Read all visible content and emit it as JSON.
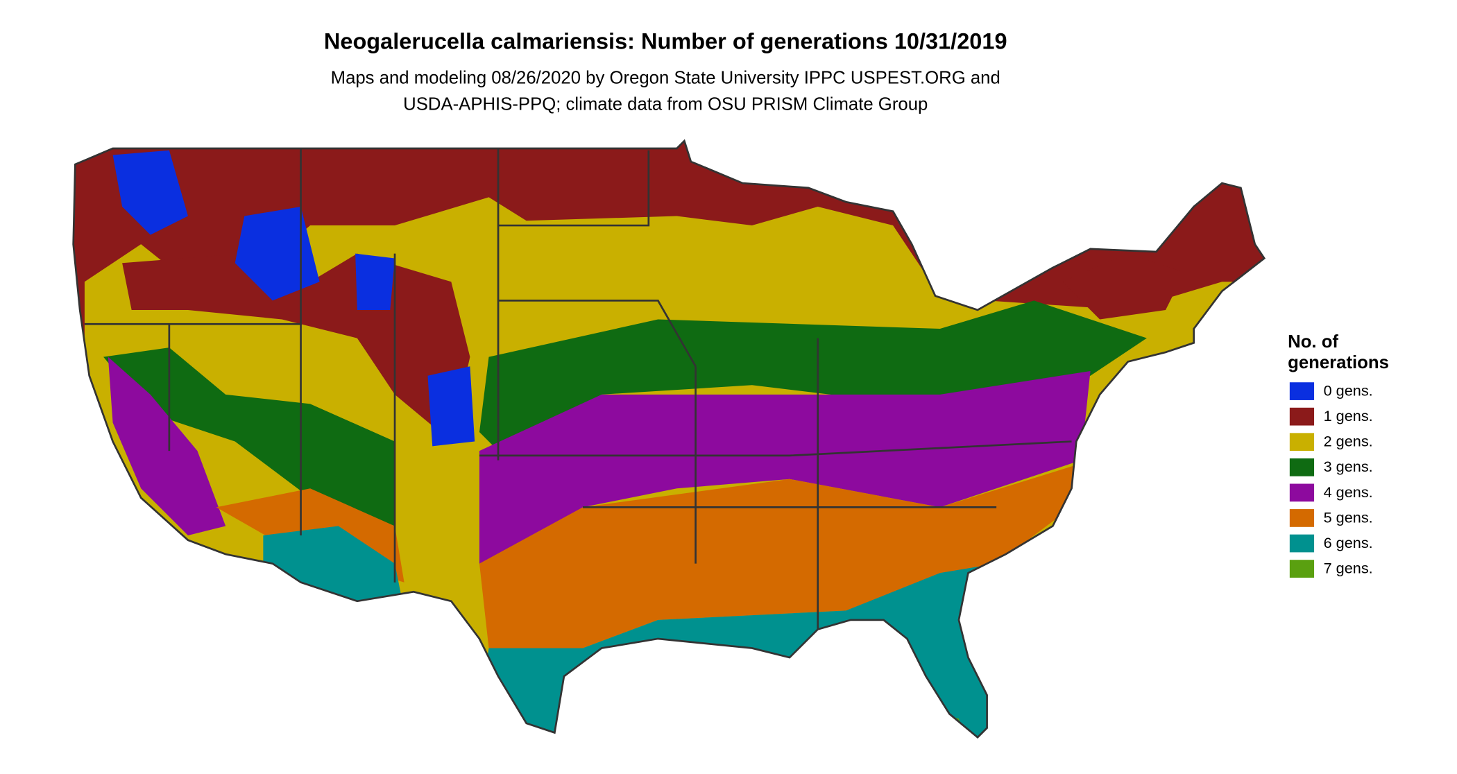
{
  "title": "Neogalerucella calmariensis: Number of generations 10/31/2019",
  "subtitle": [
    "Maps and modeling 08/26/2020 by Oregon State University IPPC USPEST.ORG and",
    "USDA-APHIS-PPQ; climate data from OSU PRISM Climate Group"
  ],
  "legend": {
    "title": [
      "No. of",
      "generations"
    ],
    "items": [
      {
        "label": "0 gens.",
        "color": "#0a2fe0"
      },
      {
        "label": "1 gens.",
        "color": "#8b1a1a"
      },
      {
        "label": "2 gens.",
        "color": "#c9b000"
      },
      {
        "label": "3 gens.",
        "color": "#0f6b12"
      },
      {
        "label": "4 gens.",
        "color": "#8d0a9e"
      },
      {
        "label": "5 gens.",
        "color": "#d46a00"
      },
      {
        "label": "6 gens.",
        "color": "#00918f"
      },
      {
        "label": "7 gens.",
        "color": "#5aa010"
      }
    ]
  }
}
